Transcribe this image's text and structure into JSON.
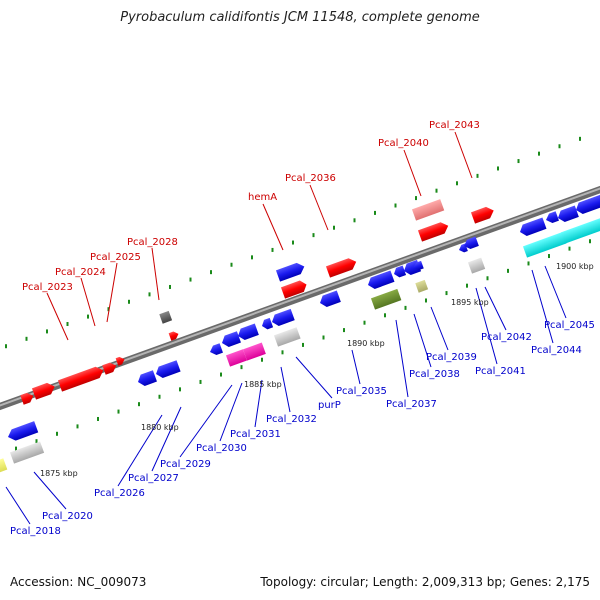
{
  "title": "Pyrobaculum calidifontis JCM 11548, complete genome",
  "footer": {
    "accession": "Accession: NC_009073",
    "topology": "Topology: circular; Length: 2,009,313 bp; Genes: 2,175"
  },
  "colors": {
    "backbone": "#8c8c8c",
    "highlight_gene": "#ff0000",
    "label_red": "#cc0000",
    "label_blue": "#0000cc",
    "tick_green": "#1a8a1a"
  },
  "scale_labels": [
    {
      "text": "1875 kbp",
      "kbp": 1875
    },
    {
      "text": "1880 kbp",
      "kbp": 1880
    },
    {
      "text": "1885 kbp",
      "kbp": 1885
    },
    {
      "text": "1890 kbp",
      "kbp": 1890
    },
    {
      "text": "1895 kbp",
      "kbp": 1895
    },
    {
      "text": "1900 kbp",
      "kbp": 1900
    }
  ],
  "red_labels": [
    {
      "name": "Pcal_2023"
    },
    {
      "name": "Pcal_2024"
    },
    {
      "name": "Pcal_2025"
    },
    {
      "name": "Pcal_2028"
    },
    {
      "name": "hemA"
    },
    {
      "name": "Pcal_2036"
    },
    {
      "name": "Pcal_2040"
    },
    {
      "name": "Pcal_2043"
    }
  ],
  "blue_labels": [
    {
      "name": "Pcal_2018"
    },
    {
      "name": "Pcal_2020"
    },
    {
      "name": "Pcal_2026"
    },
    {
      "name": "Pcal_2027"
    },
    {
      "name": "Pcal_2029"
    },
    {
      "name": "Pcal_2030"
    },
    {
      "name": "Pcal_2031"
    },
    {
      "name": "Pcal_2032"
    },
    {
      "name": "purP"
    },
    {
      "name": "Pcal_2035"
    },
    {
      "name": "Pcal_2037"
    },
    {
      "name": "Pcal_2038"
    },
    {
      "name": "Pcal_2039"
    },
    {
      "name": "Pcal_2041"
    },
    {
      "name": "Pcal_2042"
    },
    {
      "name": "Pcal_2044"
    },
    {
      "name": "Pcal_2045"
    }
  ]
}
